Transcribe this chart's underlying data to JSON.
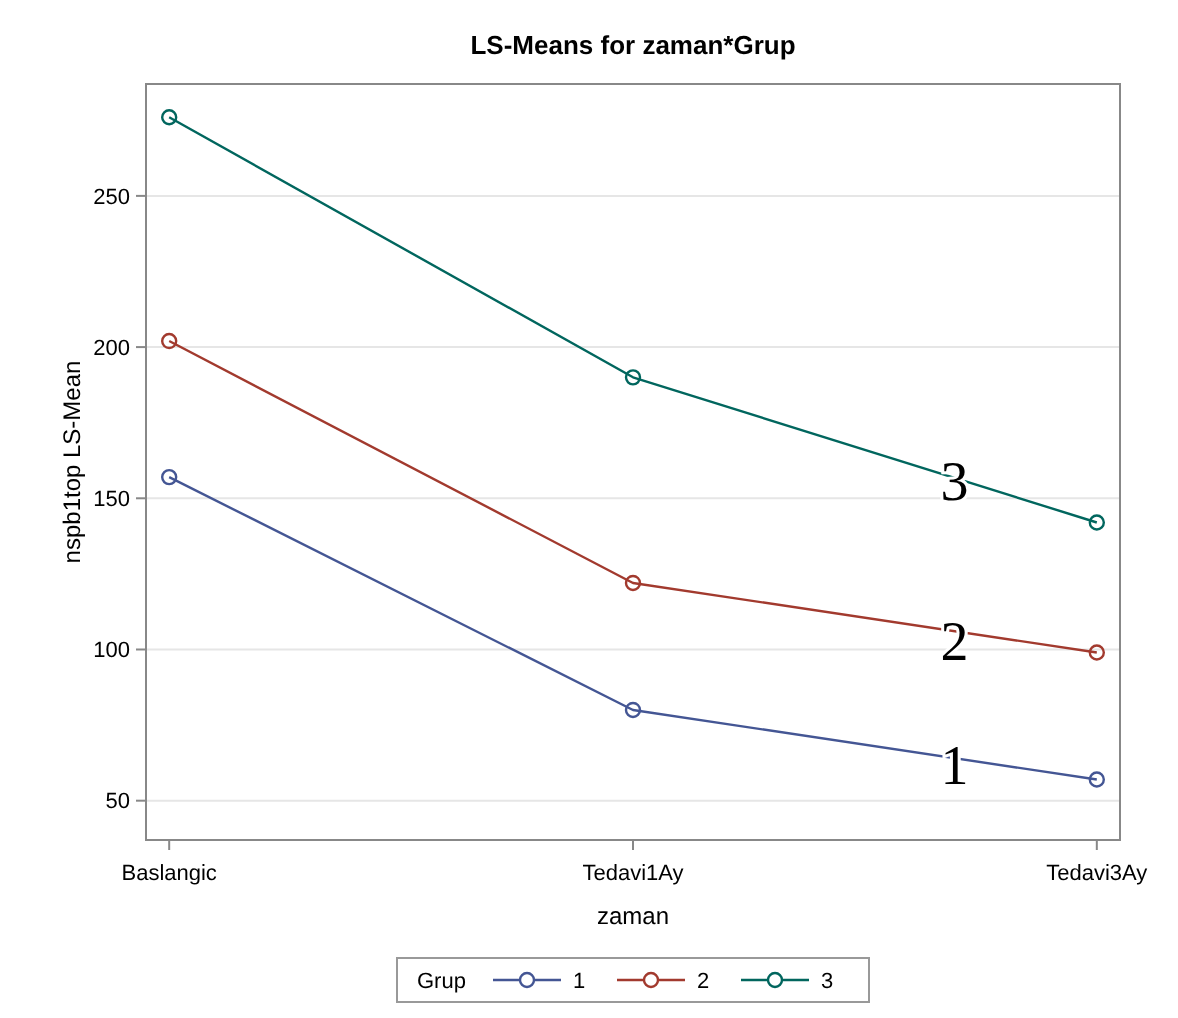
{
  "chart_data": {
    "type": "line",
    "title": "LS-Means for zaman*Grup",
    "xlabel": "zaman",
    "ylabel": "nspb1top LS-Mean",
    "legend_title": "Grup",
    "categories": [
      "Baslangic",
      "Tedavi1Ay",
      "Tedavi3Ay"
    ],
    "series": [
      {
        "name": "1",
        "color": "#445694",
        "values": [
          157,
          80,
          57
        ]
      },
      {
        "name": "2",
        "color": "#a23a2e",
        "values": [
          202,
          122,
          99
        ]
      },
      {
        "name": "3",
        "color": "#01665e",
        "values": [
          276,
          190,
          142
        ]
      }
    ],
    "ylim": [
      37,
      287
    ],
    "yticks": [
      50,
      100,
      150,
      200,
      250
    ],
    "grid": "y",
    "legend": "bottom",
    "marker": "circle",
    "line_style": "solid",
    "annotations": [
      {
        "text": "1",
        "y": 62
      },
      {
        "text": "2",
        "y": 103
      },
      {
        "text": "3",
        "y": 156
      }
    ]
  }
}
